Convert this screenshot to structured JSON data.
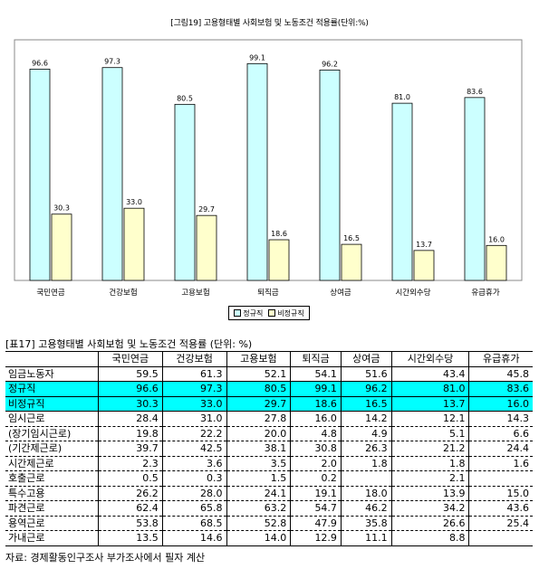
{
  "chart_data": {
    "type": "bar",
    "title": "[그림19] 고용형태별 사회보험 및 노동조건 적용률(단위:%)",
    "categories": [
      "국민연금",
      "건강보험",
      "고용보험",
      "퇴직금",
      "상여금",
      "시간외수당",
      "유급휴가"
    ],
    "series": [
      {
        "name": "정규직",
        "values": [
          96.6,
          97.3,
          80.5,
          99.1,
          96.2,
          81.0,
          83.6
        ],
        "color": "#ccffff"
      },
      {
        "name": "비정규직",
        "values": [
          30.3,
          33.0,
          29.7,
          18.6,
          16.5,
          13.7,
          16.0
        ],
        "color": "#ffffcc"
      }
    ],
    "ylim": [
      0,
      110
    ],
    "legend_position": "bottom"
  },
  "table": {
    "title": "[표17] 고용형태별 사회보험 및 노동조건 적용률 (단위: %)",
    "headers": [
      "",
      "국민연금",
      "건강보험",
      "고용보험",
      "퇴직금",
      "상여금",
      "시간외수당",
      "유급휴가"
    ],
    "rows": [
      {
        "label": "임금노동자",
        "values": [
          "59.5",
          "61.3",
          "52.1",
          "54.1",
          "51.6",
          "43.4",
          "45.8"
        ],
        "style": ""
      },
      {
        "label": "정규직",
        "values": [
          "96.6",
          "97.3",
          "80.5",
          "99.1",
          "96.2",
          "81.0",
          "83.6"
        ],
        "style": "hl"
      },
      {
        "label": "비정규직",
        "values": [
          "30.3",
          "33.0",
          "29.7",
          "18.6",
          "16.5",
          "13.7",
          "16.0"
        ],
        "style": "hl"
      },
      {
        "label": "임시근로",
        "values": [
          "28.4",
          "31.0",
          "27.8",
          "16.0",
          "14.2",
          "12.1",
          "14.3"
        ],
        "style": "dashed"
      },
      {
        "label": " (장기임시근로)",
        "values": [
          "19.8",
          "22.2",
          "20.0",
          "4.8",
          "4.9",
          "5.1",
          "6.6"
        ],
        "style": "dashed"
      },
      {
        "label": " (기간제근로)",
        "values": [
          "39.7",
          "42.5",
          "38.1",
          "30.8",
          "26.3",
          "21.2",
          "24.4"
        ],
        "style": "dashed"
      },
      {
        "label": "시간제근로",
        "values": [
          "2.3",
          "3.6",
          "3.5",
          "2.0",
          "1.8",
          "1.8",
          "1.6"
        ],
        "style": "dashed"
      },
      {
        "label": "호출근로",
        "values": [
          "0.5",
          "0.3",
          "1.5",
          "0.2",
          "",
          "2.1",
          ""
        ],
        "style": "dashed"
      },
      {
        "label": "특수고용",
        "values": [
          "26.2",
          "28.0",
          "24.1",
          "19.1",
          "18.0",
          "13.9",
          "15.0"
        ],
        "style": "dashed"
      },
      {
        "label": "파견근로",
        "values": [
          "62.4",
          "65.8",
          "63.2",
          "54.7",
          "46.2",
          "34.2",
          "43.6"
        ],
        "style": "dashed"
      },
      {
        "label": "용역근로",
        "values": [
          "53.8",
          "68.5",
          "52.8",
          "47.9",
          "35.8",
          "26.6",
          "25.4"
        ],
        "style": "dashed"
      },
      {
        "label": "가내근로",
        "values": [
          "13.5",
          "14.6",
          "14.0",
          "12.9",
          "11.1",
          "8.8",
          ""
        ],
        "style": "solid-bottom"
      }
    ],
    "source": "자료: 경제활동인구조사 부가조사에서 필자 계산"
  }
}
